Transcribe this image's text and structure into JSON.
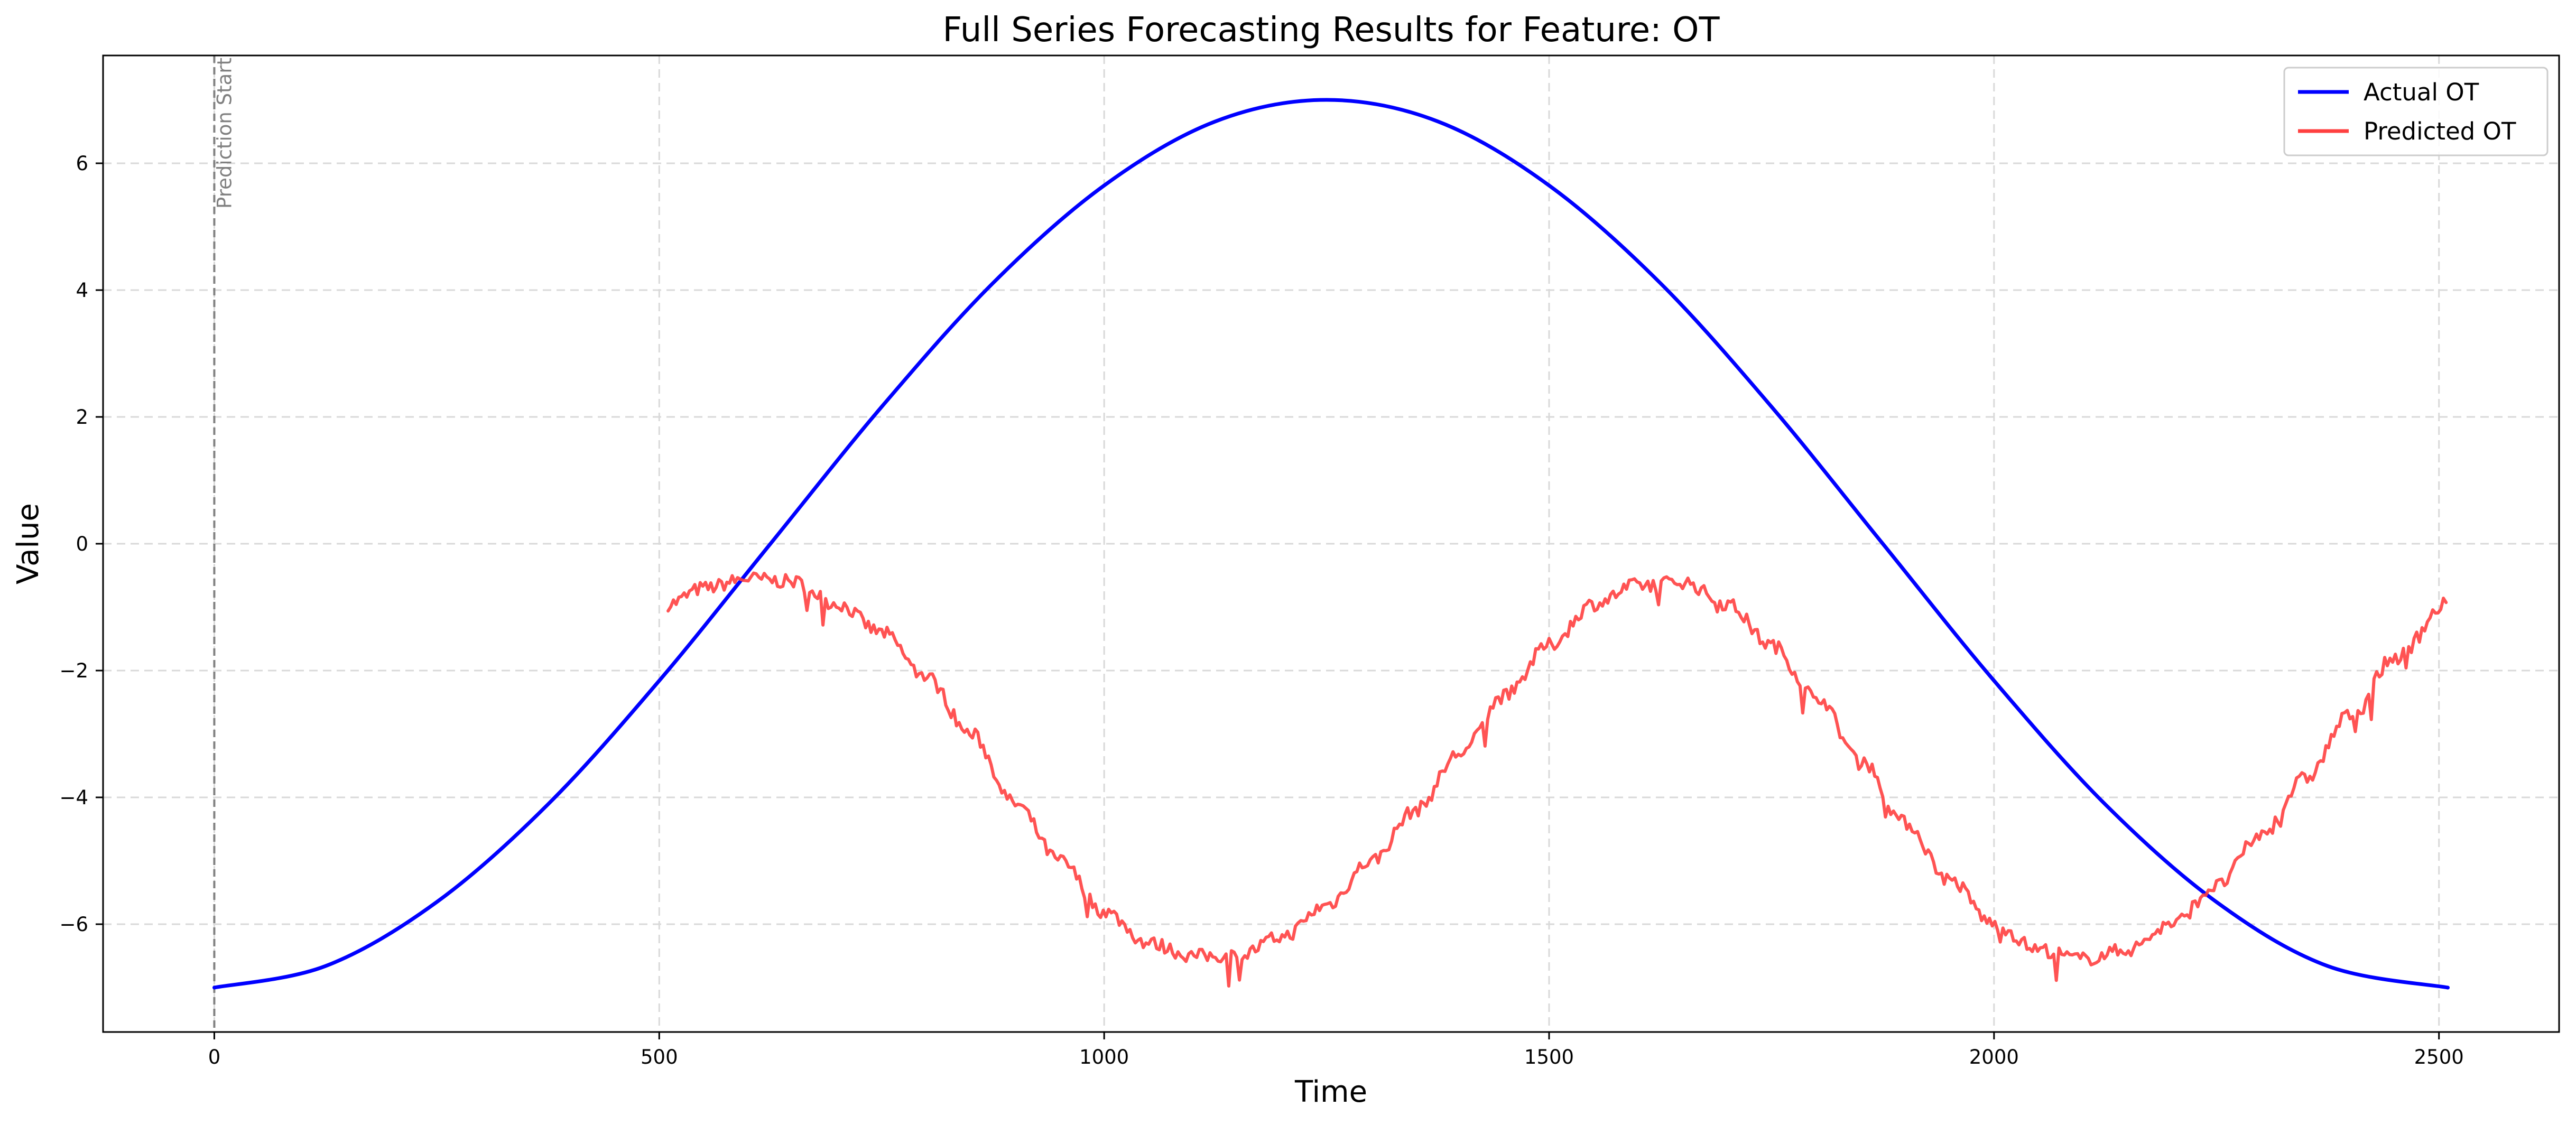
{
  "chart_data": {
    "type": "line",
    "title": "Full Series Forecasting Results for Feature: OT",
    "xlabel": "Time",
    "ylabel": "Value",
    "xlim": [
      -125,
      2635
    ],
    "ylim": [
      -7.7,
      7.7
    ],
    "xticks": [
      0,
      500,
      1000,
      1500,
      2000,
      2500
    ],
    "yticks": [
      -6,
      -4,
      -2,
      0,
      2,
      4,
      6
    ],
    "xtick_labels": [
      "0",
      "500",
      "1000",
      "1500",
      "2000",
      "2500"
    ],
    "ytick_labels": [
      "−6",
      "−4",
      "−2",
      "0",
      "2",
      "4",
      "6"
    ],
    "grid": true,
    "legend_position": "top-right",
    "annotation": {
      "text": "Prediction Start",
      "x": 0
    },
    "series": [
      {
        "name": "Actual OT",
        "color": "#0000ff",
        "x": [
          0,
          125,
          250,
          375,
          500,
          625,
          750,
          875,
          1000,
          1125,
          1250,
          1375,
          1500,
          1625,
          1750,
          1875,
          2000,
          2125,
          2250,
          2375,
          2510
        ],
        "y": [
          -7.0,
          -6.66,
          -5.65,
          -4.11,
          -2.16,
          0.0,
          2.16,
          4.11,
          5.65,
          6.66,
          7.0,
          6.66,
          5.65,
          4.11,
          2.16,
          0.0,
          -2.16,
          -4.11,
          -5.65,
          -6.66,
          -7.0
        ]
      },
      {
        "name": "Predicted OT",
        "color": "#ff4040",
        "x": [
          510,
          550,
          600,
          650,
          700,
          750,
          800,
          850,
          900,
          950,
          1000,
          1050,
          1100,
          1150,
          1200,
          1250,
          1300,
          1350,
          1400,
          1450,
          1500,
          1550,
          1600,
          1650,
          1700,
          1750,
          1800,
          1850,
          1900,
          1950,
          2000,
          2050,
          2100,
          2150,
          2200,
          2250,
          2300,
          2350,
          2400,
          2450,
          2510
        ],
        "y": [
          -0.95,
          -0.7,
          -0.55,
          -0.6,
          -0.95,
          -1.4,
          -2.1,
          -3.0,
          -4.1,
          -5.0,
          -5.8,
          -6.3,
          -6.5,
          -6.5,
          -6.2,
          -5.7,
          -5.0,
          -4.2,
          -3.3,
          -2.4,
          -1.6,
          -0.95,
          -0.65,
          -0.6,
          -0.95,
          -1.6,
          -2.4,
          -3.4,
          -4.4,
          -5.3,
          -6.0,
          -6.4,
          -6.55,
          -6.4,
          -6.0,
          -5.4,
          -4.6,
          -3.7,
          -2.7,
          -1.8,
          -0.95
        ]
      }
    ]
  }
}
